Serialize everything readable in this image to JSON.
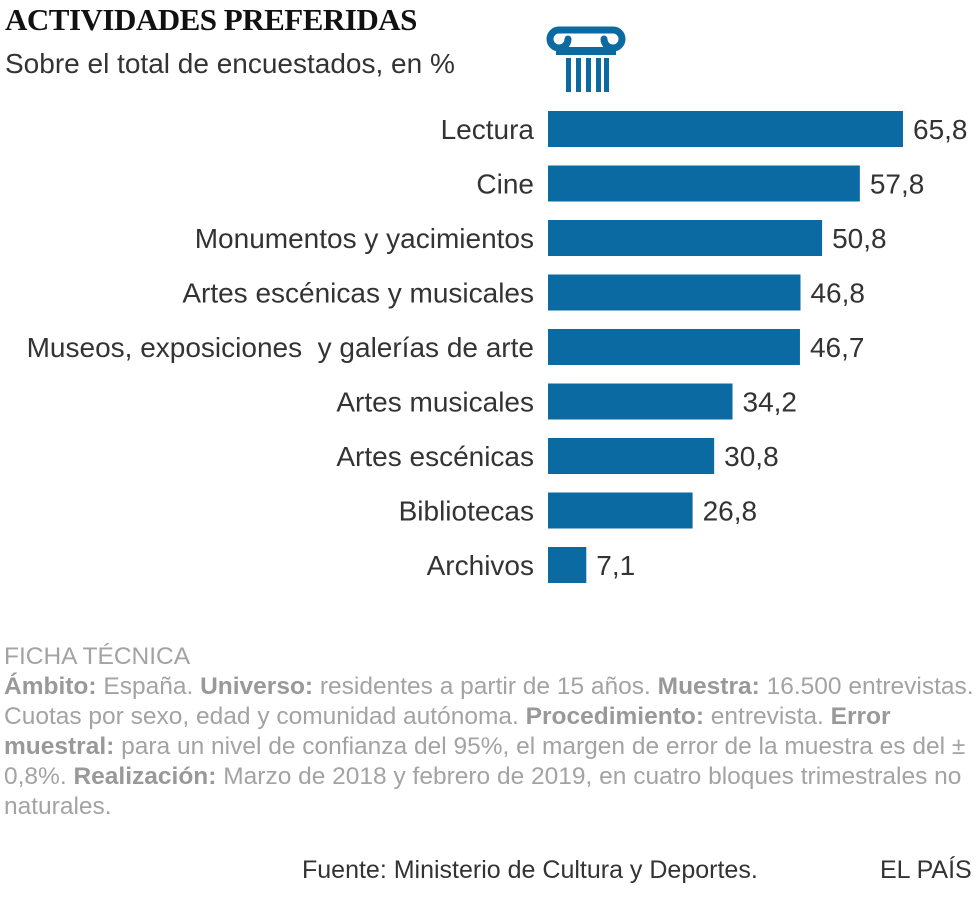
{
  "chart_data": {
    "type": "bar",
    "orientation": "horizontal",
    "title": "ACTIVIDADES PREFERIDAS",
    "subtitle": "Sobre el total de encuestados, en %",
    "categories": [
      "Lectura",
      "Cine",
      "Monumentos y yacimientos",
      "Artes escénicas y musicales",
      "Museos, exposiciones  y galerías de arte",
      "Artes musicales",
      "Artes escénicas",
      "Bibliotecas",
      "Archivos"
    ],
    "values": [
      65.8,
      57.8,
      50.8,
      46.8,
      46.7,
      34.2,
      30.8,
      26.8,
      7.1
    ],
    "value_labels": [
      "65,8",
      "57,8",
      "50,8",
      "46,8",
      "46,7",
      "34,2",
      "30,8",
      "26,8",
      "7,1"
    ],
    "xlim": [
      0,
      65.8
    ],
    "grid": false,
    "colors": {
      "bar": "#0a6aa1",
      "text": "#333333"
    }
  },
  "logo": {
    "icon": "ionic-column-icon",
    "color": "#0a6aa1"
  },
  "ficha": {
    "heading": "FICHA TÉCNICA",
    "items": [
      {
        "label": "Ámbito:",
        "text": " España. "
      },
      {
        "label": "Universo:",
        "text": " residentes a partir de 15 años. "
      },
      {
        "label": "Muestra:",
        "text": " 16.500 entrevistas. Cuotas por sexo, edad y comunidad autónoma. "
      },
      {
        "label": "Procedimiento:",
        "text": " entrevista. "
      },
      {
        "label": "Error muestral:",
        "text": " para un nivel de confianza del 95%, el margen de error de la muestra es del ± 0,8%. "
      },
      {
        "label": "Realización:",
        "text": " Marzo de 2018 y febrero de 2019, en cuatro bloques trimestrales no naturales."
      }
    ]
  },
  "footer": {
    "source": "Fuente: Ministerio de Cultura y Deportes.",
    "brand": "EL PAÍS"
  }
}
